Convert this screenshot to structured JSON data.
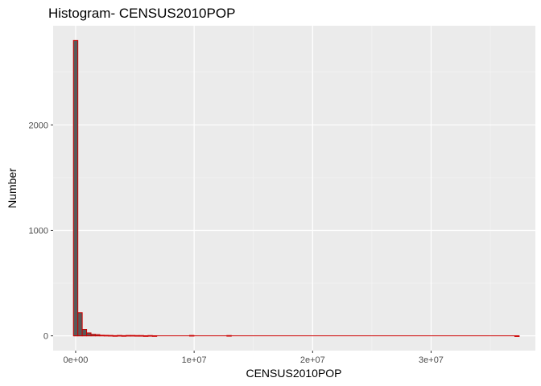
{
  "chart_data": {
    "type": "bar",
    "title": "Histogram- CENSUS2010POP",
    "xlabel": "CENSUS2010POP",
    "ylabel": "Number",
    "xlim": [
      -1900000,
      38800000
    ],
    "ylim": [
      -140,
      2940
    ],
    "x_ticks": [
      0,
      10000000,
      20000000,
      30000000
    ],
    "x_tick_labels": [
      "0e+00",
      "1e+07",
      "2e+07",
      "3e+07"
    ],
    "y_ticks": [
      0,
      1000,
      2000
    ],
    "y_tick_labels": [
      "0",
      "1000",
      "2000"
    ],
    "grid": true,
    "bin_width": 370000,
    "bins": [
      {
        "x": 0,
        "count": 2800
      },
      {
        "x": 370000,
        "count": 220
      },
      {
        "x": 740000,
        "count": 62
      },
      {
        "x": 1110000,
        "count": 28
      },
      {
        "x": 1480000,
        "count": 15
      },
      {
        "x": 1850000,
        "count": 12
      },
      {
        "x": 2220000,
        "count": 6
      },
      {
        "x": 2590000,
        "count": 5
      },
      {
        "x": 2960000,
        "count": 4
      },
      {
        "x": 3330000,
        "count": 2
      },
      {
        "x": 3700000,
        "count": 4
      },
      {
        "x": 4070000,
        "count": 2
      },
      {
        "x": 4440000,
        "count": 4
      },
      {
        "x": 4810000,
        "count": 4
      },
      {
        "x": 5180000,
        "count": 3
      },
      {
        "x": 5550000,
        "count": 3
      },
      {
        "x": 5920000,
        "count": 1
      },
      {
        "x": 6290000,
        "count": 3
      },
      {
        "x": 6660000,
        "count": 1
      },
      {
        "x": 9800000,
        "count": 4
      },
      {
        "x": 12950000,
        "count": 3
      },
      {
        "x": 37250000,
        "count": 0
      }
    ],
    "colors": {
      "panel_background": "#ebebeb",
      "grid_major": "#ffffff",
      "grid_minor": "#f5f5f5",
      "bar_fill": "#595959",
      "bar_outline": "#cc0000"
    }
  }
}
